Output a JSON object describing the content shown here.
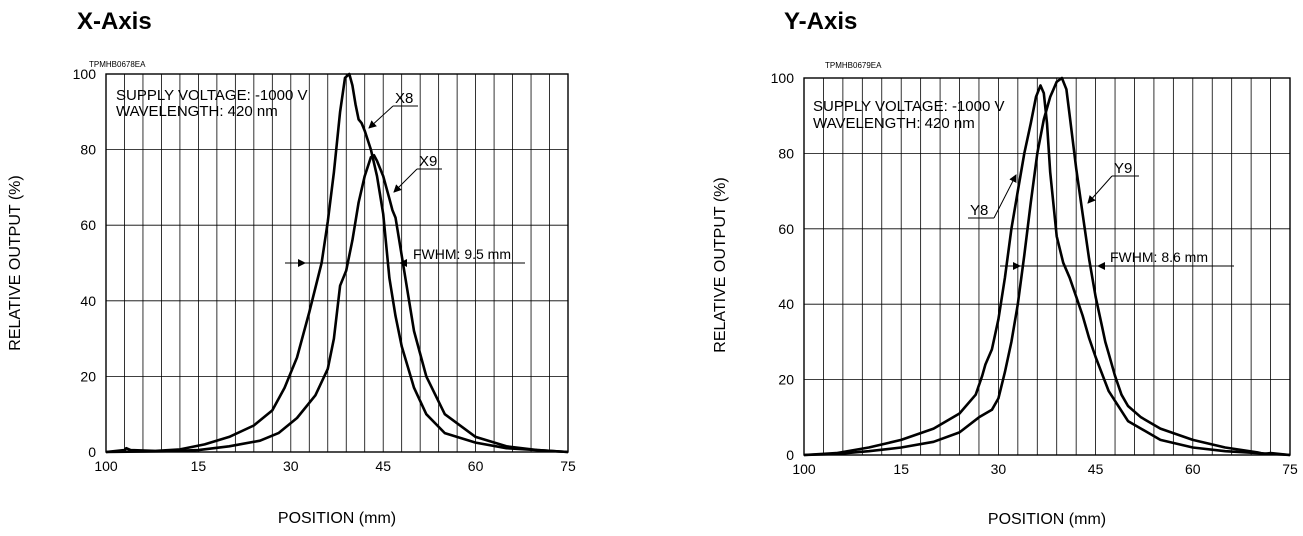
{
  "chart_data": [
    {
      "type": "line",
      "title": "X-Axis",
      "code": "TPMHB0678EA",
      "xlabel": "POSITION (mm)",
      "ylabel": "RELATIVE OUTPUT (%)",
      "x_tick_labels": [
        "100",
        "15",
        "30",
        "45",
        "60",
        "75"
      ],
      "y_tick_labels": [
        "0",
        "20",
        "40",
        "60",
        "80",
        "100"
      ],
      "xlim": [
        0,
        75
      ],
      "ylim": [
        0,
        100
      ],
      "grid": true,
      "annotation_lines": [
        "SUPPLY VOLTAGE: -1000 V",
        "WAVELENGTH: 420 nm"
      ],
      "fwhm_label": "FWHM: 9.5 mm",
      "series": [
        {
          "name": "X8",
          "x": [
            0,
            3,
            3.3,
            4,
            8,
            12,
            16,
            20,
            24,
            27,
            29,
            31,
            33,
            35,
            36,
            37,
            38,
            38.8,
            39.5,
            40,
            40.5,
            41,
            41.5,
            42,
            43,
            44,
            45,
            46,
            47,
            48,
            50,
            52,
            55,
            60,
            65,
            70,
            75
          ],
          "y": [
            0,
            0.5,
            1,
            0.5,
            0.3,
            0.7,
            2,
            4,
            7,
            11,
            17,
            25,
            37,
            50,
            61,
            74,
            90,
            99,
            100,
            97,
            92,
            88,
            87,
            85,
            80,
            73,
            63,
            46,
            36,
            28,
            17,
            10,
            5,
            2.5,
            1,
            0.5,
            0
          ]
        },
        {
          "name": "X9",
          "x": [
            0,
            10,
            15,
            20,
            25,
            28,
            31,
            34,
            36,
            37,
            37.5,
            38,
            39,
            40,
            41,
            42,
            43,
            43.5,
            44,
            45,
            46,
            46.5,
            47,
            48,
            50,
            52,
            55,
            60,
            65,
            70,
            75
          ],
          "y": [
            0,
            0.2,
            0.5,
            1.5,
            3,
            5,
            9,
            15,
            22,
            30,
            37,
            44,
            48,
            56,
            66,
            73,
            78,
            78.5,
            77,
            73,
            67,
            64,
            62,
            52,
            32,
            20,
            10,
            4,
            1.5,
            0.5,
            0
          ]
        }
      ]
    },
    {
      "type": "line",
      "title": "Y-Axis",
      "code": "TPMHB0679EA",
      "xlabel": "POSITION (mm)",
      "ylabel": "RELATIVE OUTPUT (%)",
      "x_tick_labels": [
        "100",
        "15",
        "30",
        "45",
        "60",
        "75"
      ],
      "y_tick_labels": [
        "0",
        "20",
        "40",
        "60",
        "80",
        "100"
      ],
      "xlim": [
        0,
        75
      ],
      "ylim": [
        0,
        100
      ],
      "grid": true,
      "annotation_lines": [
        "SUPPLY VOLTAGE: -1000 V",
        "WAVELENGTH: 420 nm"
      ],
      "fwhm_label": "FWHM: 8.6 mm",
      "series": [
        {
          "name": "Y8",
          "x": [
            0,
            5,
            10,
            15,
            20,
            24,
            26.5,
            27.5,
            28,
            29,
            30,
            31,
            32,
            33,
            34,
            35,
            35.8,
            36.5,
            37,
            37.5,
            38,
            39,
            40,
            41,
            42,
            43,
            44,
            45,
            47,
            50,
            55,
            60,
            65,
            70,
            75
          ],
          "y": [
            0,
            0.5,
            2,
            4,
            7,
            11,
            16,
            21,
            24,
            28,
            36,
            47,
            60,
            70,
            80,
            88,
            95,
            98,
            96,
            88,
            75,
            58,
            51,
            47,
            42,
            37,
            31,
            26,
            17,
            9,
            4,
            2,
            1,
            0.5,
            0
          ]
        },
        {
          "name": "Y9",
          "x": [
            0,
            5,
            10,
            15,
            20,
            24,
            27,
            29,
            30,
            31,
            32,
            33,
            34,
            35,
            36,
            37,
            38,
            38.5,
            39,
            39.8,
            40.5,
            41,
            42,
            43,
            44,
            45,
            46,
            46.5,
            47,
            48,
            49,
            50,
            52,
            55,
            60,
            65,
            70,
            71,
            72,
            75
          ],
          "y": [
            0,
            0.3,
            1,
            2,
            3.5,
            6,
            10,
            12,
            15,
            22,
            30,
            40,
            53,
            67,
            80,
            89,
            95,
            97,
            99,
            100,
            97,
            90,
            76,
            64,
            52,
            42,
            34,
            30,
            27,
            21,
            16,
            13,
            10,
            7,
            4,
            2,
            0.7,
            0.3,
            0.5,
            0
          ]
        }
      ]
    }
  ]
}
